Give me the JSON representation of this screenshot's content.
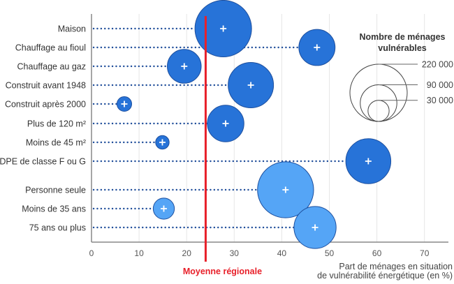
{
  "chart_data": {
    "type": "scatter",
    "subtype": "bubble",
    "title": "",
    "xlabel": "Part de ménages en situation de vulnérabilité énergétique (en %)",
    "xlabel_lines": [
      "Part de ménages en situation",
      "de vulnérabilité énergétique (en %)"
    ],
    "ylabel": "",
    "xlim": [
      0,
      75
    ],
    "x_ticks": [
      0,
      10,
      20,
      30,
      40,
      50,
      60,
      70
    ],
    "grid": "vertical",
    "reference_line": {
      "label": "Moyenne régionale",
      "value": 24,
      "color": "#e8202a"
    },
    "size_legend": {
      "title_lines": [
        "Nombre de ménages",
        "vulnérables"
      ],
      "placement": "top-right",
      "entries": [
        {
          "value": 220000,
          "label": "220 000"
        },
        {
          "value": 90000,
          "label": "90 000"
        },
        {
          "value": 30000,
          "label": "30 000"
        }
      ]
    },
    "colors": {
      "housing": "#2773d8",
      "household": "#55a5f6",
      "stroke": "#1d4f9e",
      "leader": "#1f4d9a"
    },
    "points": [
      {
        "label": "Maison",
        "x": 27.7,
        "size": 215000,
        "group": "housing"
      },
      {
        "label": "Chauffage au fioul",
        "x": 47.4,
        "size": 88000,
        "group": "housing"
      },
      {
        "label": "Chauffage au gaz",
        "x": 19.5,
        "size": 77000,
        "group": "housing"
      },
      {
        "label": "Construit avant 1948",
        "x": 33.5,
        "size": 138000,
        "group": "housing"
      },
      {
        "label": "Construit après 2000",
        "x": 6.9,
        "size": 14500,
        "group": "housing"
      },
      {
        "label": "Plus de 120 m²",
        "x": 28.2,
        "size": 90000,
        "group": "housing"
      },
      {
        "label": "Moins de 45 m²",
        "x": 14.9,
        "size": 12300,
        "group": "housing"
      },
      {
        "label": "DPE de classe F ou G",
        "x": 58.2,
        "size": 136000,
        "group": "housing"
      },
      {
        "label": "Personne seule",
        "x": 40.8,
        "size": 211000,
        "group": "household"
      },
      {
        "label": "Moins de 35 ans",
        "x": 15.2,
        "size": 30000,
        "group": "household"
      },
      {
        "label": "75 ans ou plus",
        "x": 47.0,
        "size": 119000,
        "group": "household"
      }
    ]
  }
}
